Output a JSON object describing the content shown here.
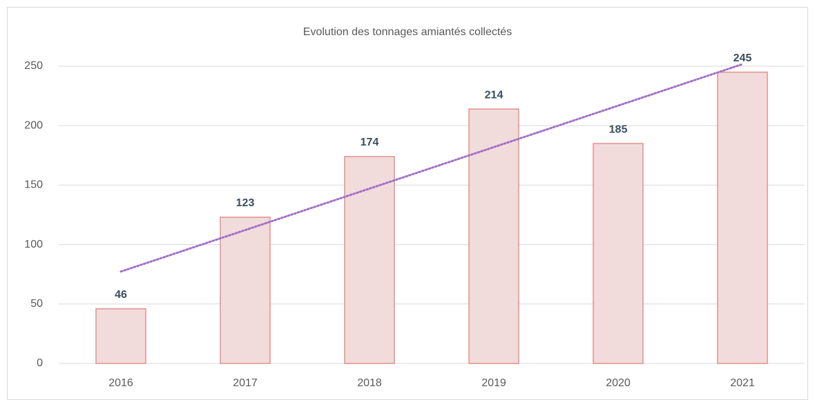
{
  "chart_data": {
    "type": "bar",
    "title": "Evolution des tonnages amiantés collectés",
    "categories": [
      "2016",
      "2017",
      "2018",
      "2019",
      "2020",
      "2021"
    ],
    "values": [
      46,
      123,
      174,
      214,
      185,
      245
    ],
    "color": "#f2dbdb",
    "edge_color": "#e0918f",
    "ylim": [
      0,
      250
    ],
    "yticks": [
      0,
      50,
      100,
      150,
      200,
      250
    ],
    "grid": true,
    "trendline": "linear",
    "trendline_color": "#a070c8"
  }
}
